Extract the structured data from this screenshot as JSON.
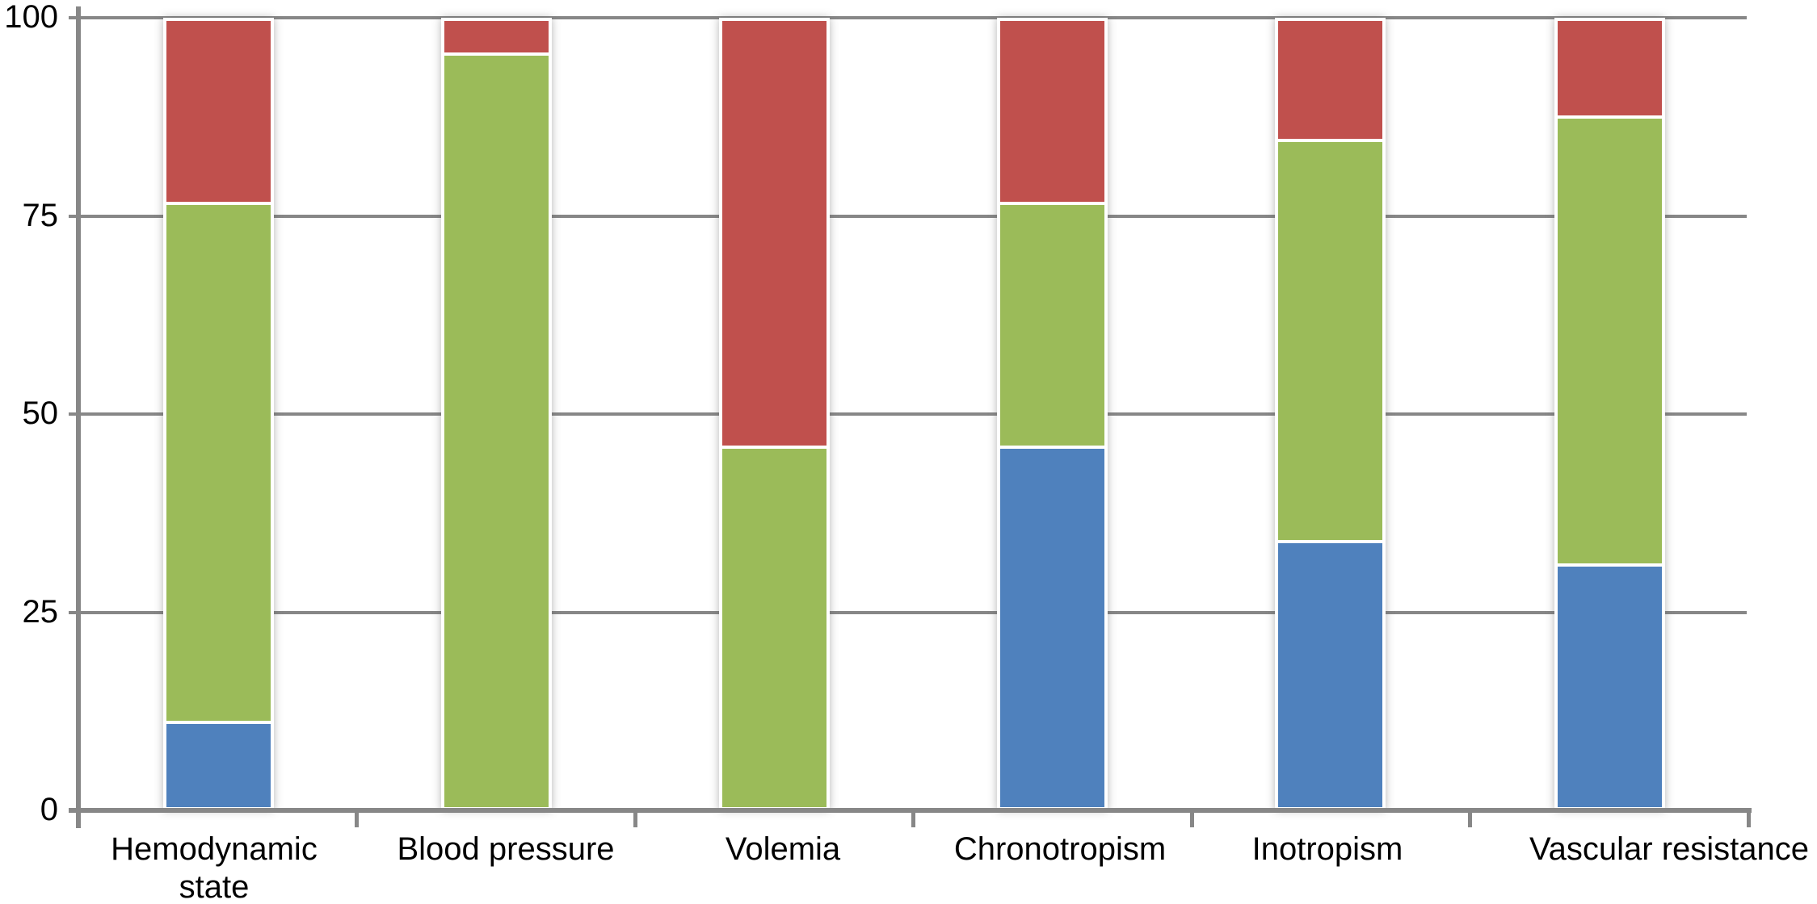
{
  "chart_data": {
    "type": "bar",
    "stacked": true,
    "title": "",
    "xlabel": "",
    "ylabel": "",
    "categories": [
      "Hemodynamic\nstate",
      "Blood pressure",
      "Volemia",
      "Chronotropism",
      "Inotropism",
      "Vascular resistance"
    ],
    "series": [
      {
        "name": "blue-bottom-segment",
        "color": "#4F81BD",
        "values": [
          11,
          0,
          0,
          46,
          34,
          31
        ]
      },
      {
        "name": "green-middle-segment",
        "color": "#9BBB59",
        "values": [
          66,
          96,
          46,
          31,
          51,
          57
        ]
      },
      {
        "name": "red-top-segment",
        "color": "#C0504D",
        "values": [
          23,
          4,
          54,
          23,
          15,
          12
        ]
      }
    ],
    "ylim": [
      0,
      100
    ],
    "yticks": [
      0,
      25,
      50,
      75,
      100
    ],
    "ytick_labels": [
      "0",
      "25",
      "50",
      "75",
      "100"
    ],
    "grid": true,
    "legend": "none",
    "colors": {
      "gridline": "#878787",
      "axis": "#878787",
      "background": "#FFFFFF",
      "tick_label": "#000000",
      "bar_border": "#FFFFFF"
    }
  }
}
